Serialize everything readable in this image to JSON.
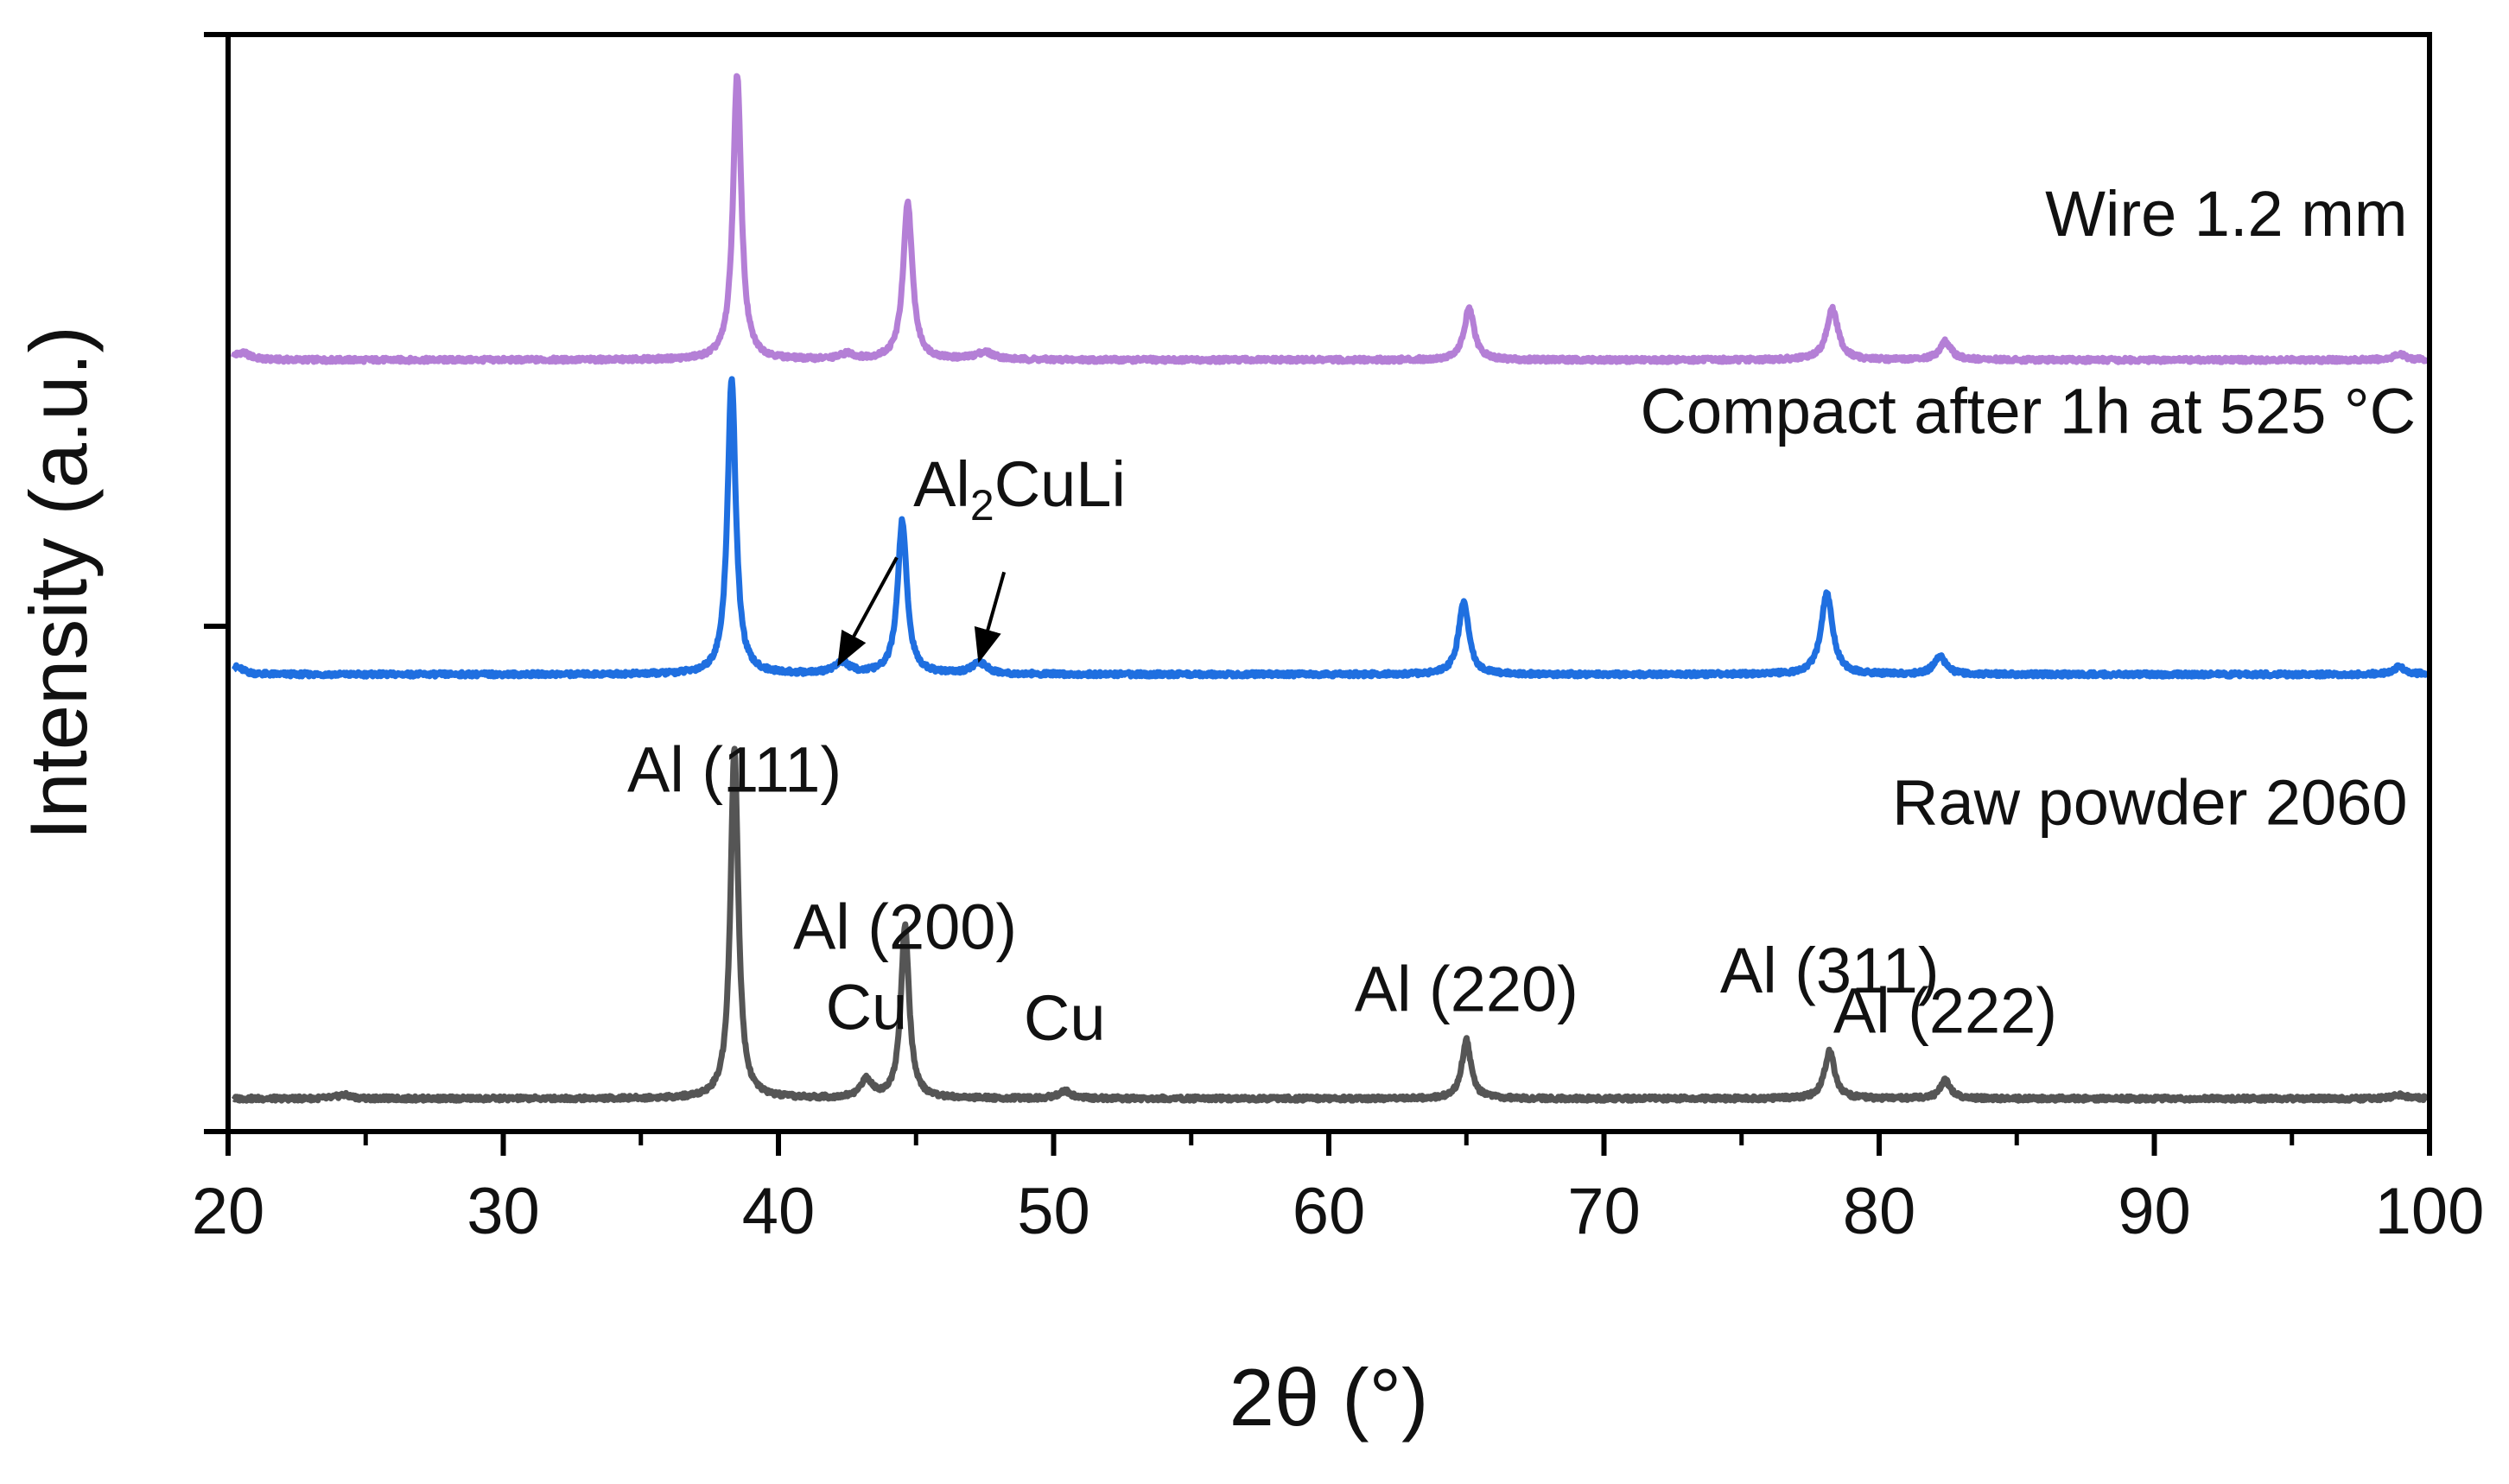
{
  "chart_data": {
    "type": "line",
    "title": "",
    "xlabel": "2θ (°)",
    "ylabel": "Intensity (a.u.)",
    "xlim": [
      20,
      100
    ],
    "x_ticks": [
      20,
      30,
      40,
      50,
      60,
      70,
      80,
      90,
      100
    ],
    "x_tick_labels": [
      "20",
      "30",
      "40",
      "50",
      "60",
      "70",
      "80",
      "90",
      "100"
    ],
    "y_ticks_labeled": false,
    "series": [
      {
        "name": "Wire 1.2 mm",
        "color": "#b47fd6",
        "baseline": 0.86,
        "peaks": [
          {
            "x": 20.5,
            "h": 0.02,
            "w": 0.35
          },
          {
            "x": 38.5,
            "h": 0.78,
            "w": 0.18
          },
          {
            "x": 42.5,
            "h": 0.015,
            "w": 0.3
          },
          {
            "x": 44.7,
            "h": 0.43,
            "w": 0.2
          },
          {
            "x": 47.5,
            "h": 0.02,
            "w": 0.4
          },
          {
            "x": 65.1,
            "h": 0.14,
            "w": 0.22
          },
          {
            "x": 78.3,
            "h": 0.14,
            "w": 0.25
          },
          {
            "x": 82.4,
            "h": 0.05,
            "w": 0.25
          },
          {
            "x": 98.9,
            "h": 0.015,
            "w": 0.3
          }
        ]
      },
      {
        "name": "Compact after 1h at 525 °C",
        "color": "#1f6fe0",
        "baseline": 0.0,
        "peaks": [
          {
            "x": 20.3,
            "h": 0.02,
            "w": 0.3
          },
          {
            "x": 38.3,
            "h": 0.81,
            "w": 0.18
          },
          {
            "x": 42.3,
            "h": 0.03,
            "w": 0.35
          },
          {
            "x": 44.5,
            "h": 0.42,
            "w": 0.2
          },
          {
            "x": 47.3,
            "h": 0.03,
            "w": 0.35
          },
          {
            "x": 64.9,
            "h": 0.2,
            "w": 0.22
          },
          {
            "x": 78.1,
            "h": 0.22,
            "w": 0.25
          },
          {
            "x": 82.2,
            "h": 0.05,
            "w": 0.25
          },
          {
            "x": 98.9,
            "h": 0.02,
            "w": 0.3
          }
        ]
      },
      {
        "name": "Raw powder 2060",
        "color": "#555555",
        "baseline": -1.16,
        "peaks": [
          {
            "x": 24.2,
            "h": 0.01,
            "w": 0.3
          },
          {
            "x": 38.4,
            "h": 0.96,
            "w": 0.17
          },
          {
            "x": 43.2,
            "h": 0.05,
            "w": 0.25
          },
          {
            "x": 44.6,
            "h": 0.47,
            "w": 0.18
          },
          {
            "x": 50.4,
            "h": 0.02,
            "w": 0.3
          },
          {
            "x": 65.0,
            "h": 0.16,
            "w": 0.2
          },
          {
            "x": 78.2,
            "h": 0.13,
            "w": 0.22
          },
          {
            "x": 82.4,
            "h": 0.05,
            "w": 0.22
          },
          {
            "x": 98.9,
            "h": 0.01,
            "w": 0.3
          }
        ]
      }
    ],
    "ylim": [
      -1.25,
      1.75
    ],
    "series_labels": [
      {
        "text": "Wire 1.2 mm",
        "x": 99.2,
        "y": 1.2
      },
      {
        "text": "Compact after 1h at 525 °C",
        "x": 99.5,
        "y": 0.66
      },
      {
        "text": "Raw powder 2060",
        "x": 99.2,
        "y": -0.41
      }
    ],
    "peak_labels": [
      {
        "text": "Al (111)",
        "x": 38.4,
        "y": -0.32
      },
      {
        "text": "Al (200)",
        "x": 44.6,
        "y": -0.75
      },
      {
        "text": "Cu",
        "x": 43.2,
        "y": -0.97
      },
      {
        "text": "Cu",
        "x": 50.4,
        "y": -1.0
      },
      {
        "text": "Al (220)",
        "x": 65.0,
        "y": -0.92
      },
      {
        "text": "Al (311)",
        "x": 78.2,
        "y": -0.87
      },
      {
        "text": "Al (222)",
        "x": 82.4,
        "y": -0.98
      }
    ],
    "phase_annotation": {
      "base": "Al",
      "subscript": "2",
      "rest": "CuLi",
      "text_x": 44.9,
      "text_y": 0.46,
      "arrows": [
        {
          "from_x": 44.3,
          "from_y": 0.32,
          "to_x": 42.2,
          "to_y": 0.03
        },
        {
          "from_x": 48.2,
          "from_y": 0.28,
          "to_x": 47.3,
          "to_y": 0.04
        }
      ]
    }
  }
}
